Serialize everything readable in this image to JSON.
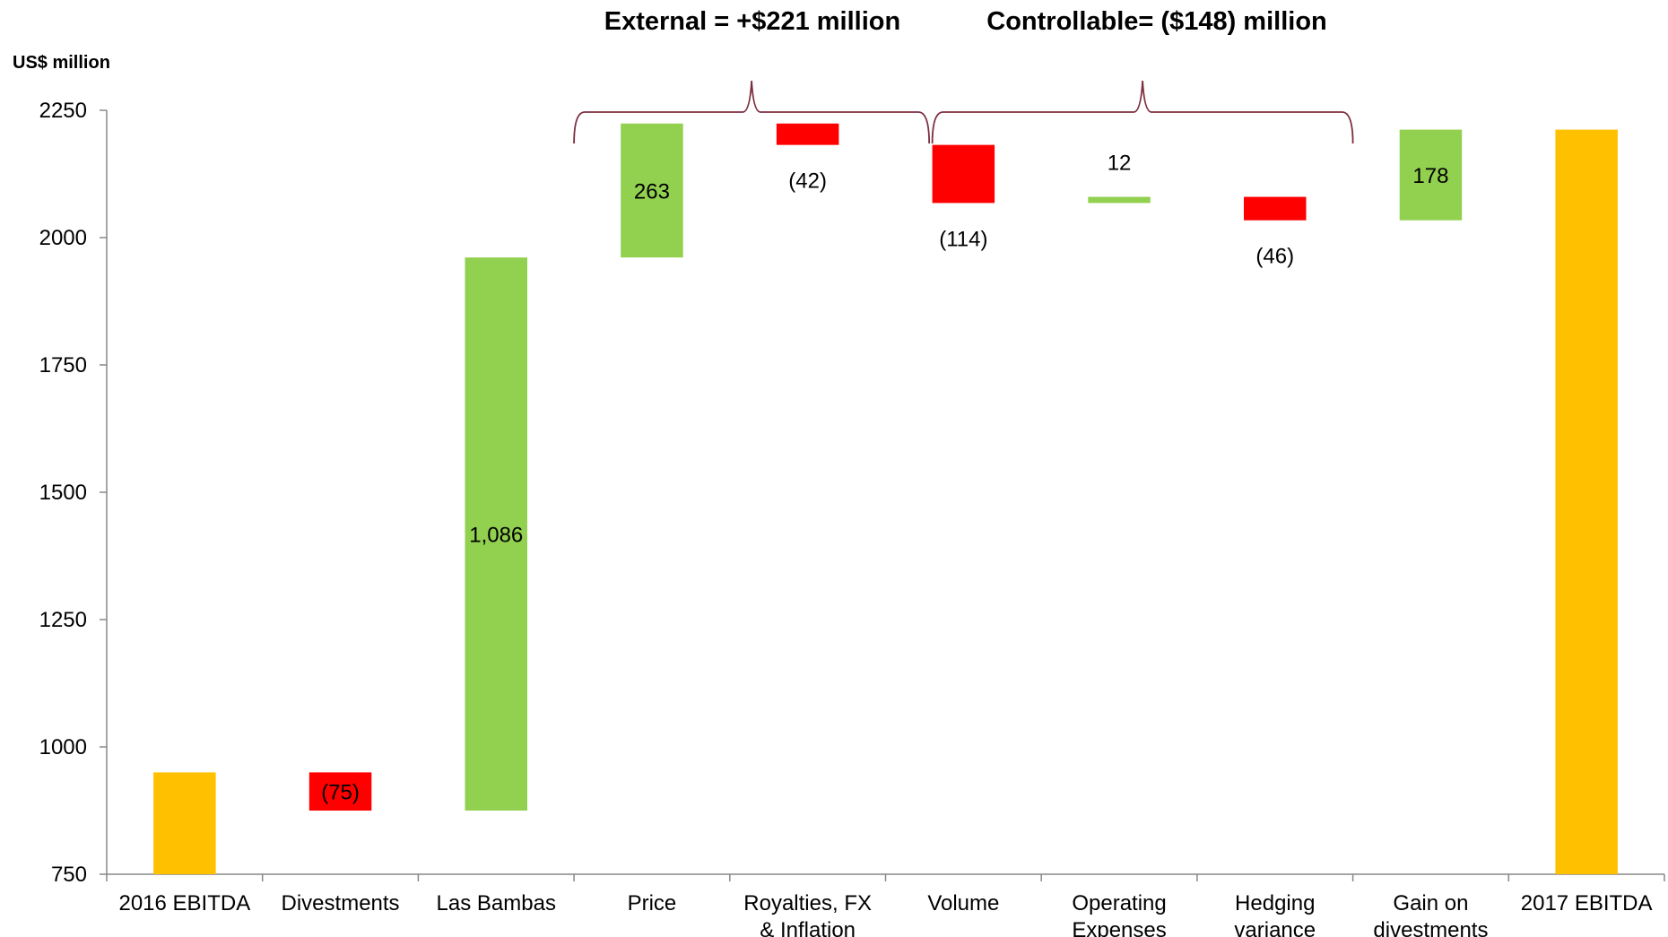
{
  "chart_data": {
    "type": "waterfall",
    "title_annotations": [
      {
        "text": "External = +$221 million",
        "from": 3,
        "to": 4
      },
      {
        "text": "Controllable= ($148) million",
        "from": 5,
        "to": 7
      }
    ],
    "y_label": "US$ million",
    "categories": [
      "2016 EBITDA",
      "Divestments",
      "Las Bambas",
      "Price",
      "Royalties, FX\n& Inflation",
      "Volume",
      "Operating\nExpenses",
      "Hedging\nvariance",
      "Gain on\ndivestments",
      "2017 EBITDA"
    ],
    "measure": [
      "absolute",
      "relative",
      "relative",
      "relative",
      "relative",
      "relative",
      "relative",
      "relative",
      "relative",
      "absolute"
    ],
    "values": [
      950,
      -75,
      1086,
      263,
      -42,
      -114,
      12,
      -46,
      178,
      2212
    ],
    "value_labels": [
      null,
      "(75)",
      "1,086",
      "263",
      "(42)",
      "(114)",
      "12",
      "(46)",
      "178",
      null
    ],
    "colors": {
      "total": "#ffc000",
      "increase": "#92d050",
      "decrease": "#ff0000"
    },
    "ylim": [
      750,
      2250
    ],
    "yticks": [
      750,
      1000,
      1250,
      1500,
      1750,
      2000,
      2250
    ],
    "grid": false
  }
}
